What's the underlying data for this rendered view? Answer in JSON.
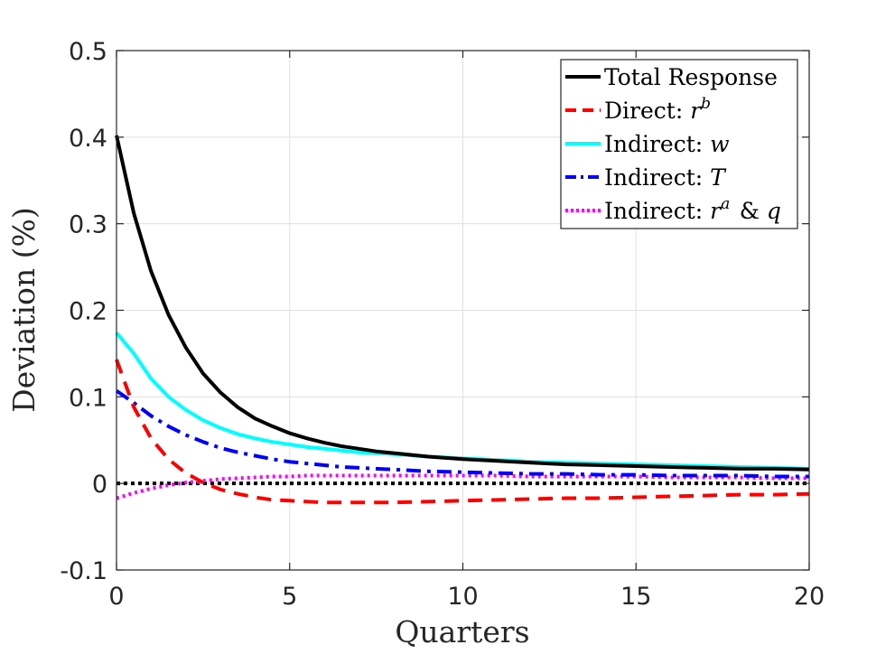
{
  "chart_data": {
    "type": "line",
    "title": "",
    "xlabel": "Quarters",
    "ylabel": "Deviation (%)",
    "xlim": [
      0,
      20
    ],
    "ylim": [
      -0.1,
      0.5
    ],
    "xticks": [
      "0",
      "5",
      "10",
      "15",
      "20"
    ],
    "yticks": [
      "-0.1",
      "0",
      "0.1",
      "0.2",
      "0.3",
      "0.4",
      "0.5"
    ],
    "grid": true,
    "legend_position": "top-right",
    "x": [
      0,
      0.5,
      1,
      1.5,
      2,
      2.5,
      3,
      3.5,
      4,
      4.5,
      5,
      5.5,
      6,
      6.5,
      7,
      7.5,
      8,
      9,
      10,
      11,
      12,
      13,
      14,
      15,
      16,
      17,
      18,
      19,
      20
    ],
    "series": [
      {
        "name": "Total Response",
        "legend_text": "Total Response",
        "legend_math": "",
        "color": "#000000",
        "style": "solid",
        "values": [
          0.402,
          0.312,
          0.245,
          0.195,
          0.157,
          0.127,
          0.105,
          0.088,
          0.075,
          0.066,
          0.058,
          0.052,
          0.047,
          0.043,
          0.04,
          0.037,
          0.035,
          0.031,
          0.028,
          0.026,
          0.024,
          0.022,
          0.021,
          0.02,
          0.019,
          0.018,
          0.017,
          0.017,
          0.016
        ]
      },
      {
        "name": "Direct: r^b",
        "legend_text": "Direct: ",
        "legend_math": "r^b",
        "color": "#ff0000",
        "style": "dashed",
        "values": [
          0.143,
          0.088,
          0.052,
          0.028,
          0.012,
          0.001,
          -0.007,
          -0.012,
          -0.016,
          -0.019,
          -0.02,
          -0.021,
          -0.022,
          -0.022,
          -0.022,
          -0.022,
          -0.022,
          -0.021,
          -0.02,
          -0.019,
          -0.018,
          -0.017,
          -0.017,
          -0.016,
          -0.015,
          -0.014,
          -0.013,
          -0.013,
          -0.012
        ]
      },
      {
        "name": "Indirect: w",
        "legend_text": "Indirect: ",
        "legend_math": "w",
        "color": "#00ffff",
        "style": "solid",
        "values": [
          0.174,
          0.15,
          0.121,
          0.1,
          0.085,
          0.073,
          0.064,
          0.057,
          0.052,
          0.048,
          0.045,
          0.042,
          0.04,
          0.038,
          0.036,
          0.035,
          0.034,
          0.031,
          0.029,
          0.027,
          0.025,
          0.024,
          0.023,
          0.022,
          0.021,
          0.02,
          0.019,
          0.018,
          0.017
        ]
      },
      {
        "name": "Indirect: T",
        "legend_text": "Indirect: ",
        "legend_math": "T",
        "color": "#0000ff",
        "style": "dashdot",
        "values": [
          0.107,
          0.093,
          0.078,
          0.066,
          0.056,
          0.048,
          0.041,
          0.036,
          0.032,
          0.028,
          0.025,
          0.023,
          0.021,
          0.019,
          0.018,
          0.017,
          0.016,
          0.014,
          0.013,
          0.012,
          0.011,
          0.011,
          0.01,
          0.01,
          0.009,
          0.009,
          0.009,
          0.008,
          0.008
        ]
      },
      {
        "name": "Indirect: r^a & q",
        "legend_text": "Indirect: ",
        "legend_math": "r^a & q",
        "color": "#ff00ff",
        "style": "dotted",
        "values": [
          -0.017,
          -0.011,
          -0.006,
          -0.002,
          0.001,
          0.003,
          0.005,
          0.006,
          0.007,
          0.008,
          0.008,
          0.009,
          0.009,
          0.009,
          0.009,
          0.009,
          0.009,
          0.009,
          0.009,
          0.009,
          0.008,
          0.008,
          0.008,
          0.008,
          0.007,
          0.007,
          0.007,
          0.006,
          0.006
        ]
      }
    ],
    "reference_line": {
      "name": "zero",
      "y": 0,
      "color": "#000000",
      "style": "dotted"
    }
  }
}
